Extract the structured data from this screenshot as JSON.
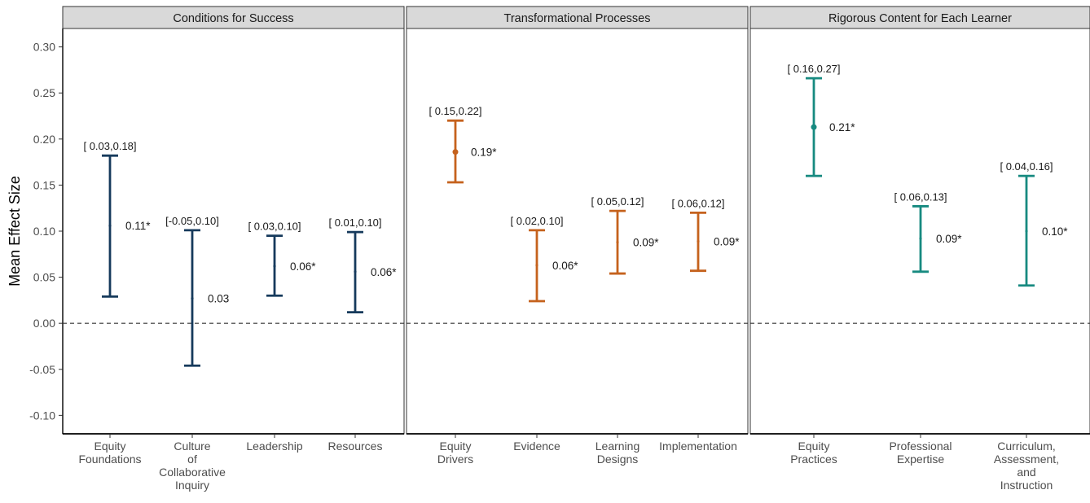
{
  "chart_data": {
    "type": "errorbar",
    "ylabel": "Mean Effect Size",
    "xlabel": "",
    "ylim": [
      -0.12,
      0.32
    ],
    "yticks": [
      "0.30",
      "0.25",
      "0.20",
      "0.15",
      "0.10",
      "0.05",
      "0.00",
      "-0.05",
      "-0.10"
    ],
    "ytick_values": [
      0.3,
      0.25,
      0.2,
      0.15,
      0.1,
      0.05,
      0.0,
      -0.05,
      -0.1
    ],
    "reference_line": 0.0,
    "grid": false,
    "panels": [
      {
        "title": "Conditions for Success",
        "color": "#163a5c",
        "categories": [
          {
            "label": [
              "Equity",
              "Foundations"
            ],
            "mean": 0.106,
            "lower": 0.029,
            "upper": 0.182,
            "mean_label": "0.11*",
            "ci_label": "[ 0.03,0.18]"
          },
          {
            "label": [
              "Culture",
              "of",
              "Collaborative",
              "Inquiry"
            ],
            "mean": 0.027,
            "lower": -0.046,
            "upper": 0.101,
            "mean_label": "0.03",
            "ci_label": "[-0.05,0.10]"
          },
          {
            "label": [
              "Leadership"
            ],
            "mean": 0.062,
            "lower": 0.03,
            "upper": 0.095,
            "mean_label": "0.06*",
            "ci_label": "[ 0.03,0.10]"
          },
          {
            "label": [
              "Resources"
            ],
            "mean": 0.056,
            "lower": 0.012,
            "upper": 0.099,
            "mean_label": "0.06*",
            "ci_label": "[ 0.01,0.10]"
          }
        ]
      },
      {
        "title": "Transformational Processes",
        "color": "#c5621d",
        "categories": [
          {
            "label": [
              "Equity",
              "Drivers"
            ],
            "mean": 0.186,
            "lower": 0.153,
            "upper": 0.22,
            "mean_label": "0.19*",
            "ci_label": "[ 0.15,0.22]"
          },
          {
            "label": [
              "Evidence"
            ],
            "mean": 0.063,
            "lower": 0.024,
            "upper": 0.101,
            "mean_label": "0.06*",
            "ci_label": "[ 0.02,0.10]"
          },
          {
            "label": [
              "Learning",
              "Designs"
            ],
            "mean": 0.088,
            "lower": 0.054,
            "upper": 0.122,
            "mean_label": "0.09*",
            "ci_label": "[ 0.05,0.12]"
          },
          {
            "label": [
              "Implementation"
            ],
            "mean": 0.089,
            "lower": 0.057,
            "upper": 0.12,
            "mean_label": "0.09*",
            "ci_label": "[ 0.06,0.12]"
          }
        ]
      },
      {
        "title": "Rigorous Content for Each Learner",
        "color": "#178a80",
        "categories": [
          {
            "label": [
              "Equity",
              "Practices"
            ],
            "mean": 0.213,
            "lower": 0.16,
            "upper": 0.266,
            "mean_label": "0.21*",
            "ci_label": "[ 0.16,0.27]"
          },
          {
            "label": [
              "Professional",
              "Expertise"
            ],
            "mean": 0.092,
            "lower": 0.056,
            "upper": 0.127,
            "mean_label": "0.09*",
            "ci_label": "[ 0.06,0.13]"
          },
          {
            "label": [
              "Curriculum,",
              "Assessment,",
              "and",
              "Instruction"
            ],
            "mean": 0.1,
            "lower": 0.041,
            "upper": 0.16,
            "mean_label": "0.10*",
            "ci_label": "[ 0.04,0.16]"
          }
        ]
      }
    ]
  }
}
